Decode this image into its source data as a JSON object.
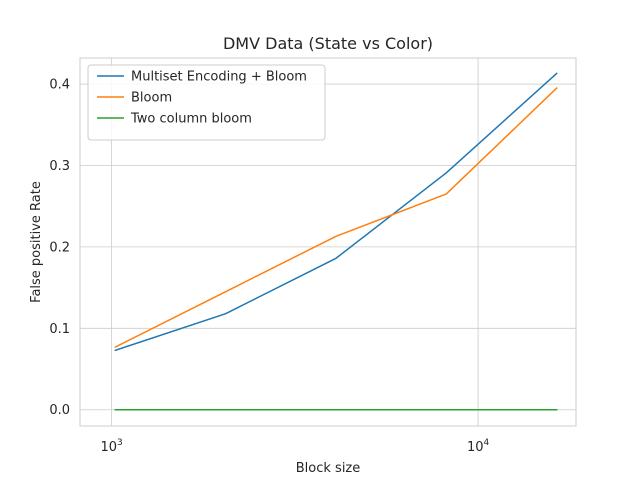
{
  "chart_data": {
    "type": "line",
    "title": "DMV Data (State vs Color)",
    "xlabel": "Block size",
    "ylabel": "False positive Rate",
    "xscale": "log",
    "xlim": [
      820,
      18500
    ],
    "ylim": [
      -0.02,
      0.432
    ],
    "grid": true,
    "legend_position": "upper-left",
    "x": [
      1024,
      2048,
      4096,
      8192,
      16384
    ],
    "x_ticks": [
      {
        "value": 1000,
        "base": "10",
        "exp": "3"
      },
      {
        "value": 10000,
        "base": "10",
        "exp": "4"
      }
    ],
    "y_ticks": [
      {
        "value": 0.0,
        "label": "0.0"
      },
      {
        "value": 0.1,
        "label": "0.1"
      },
      {
        "value": 0.2,
        "label": "0.2"
      },
      {
        "value": 0.3,
        "label": "0.3"
      },
      {
        "value": 0.4,
        "label": "0.4"
      }
    ],
    "series": [
      {
        "name": "Multiset Encoding + Bloom",
        "color": "#1f77b4",
        "values": [
          0.073,
          0.118,
          0.186,
          0.291,
          0.413
        ]
      },
      {
        "name": "Bloom",
        "color": "#ff7f0e",
        "values": [
          0.077,
          0.145,
          0.213,
          0.265,
          0.395
        ]
      },
      {
        "name": "Two column bloom",
        "color": "#2ca02c",
        "values": [
          0.0,
          0.0,
          0.0,
          0.0,
          0.0
        ]
      }
    ]
  }
}
